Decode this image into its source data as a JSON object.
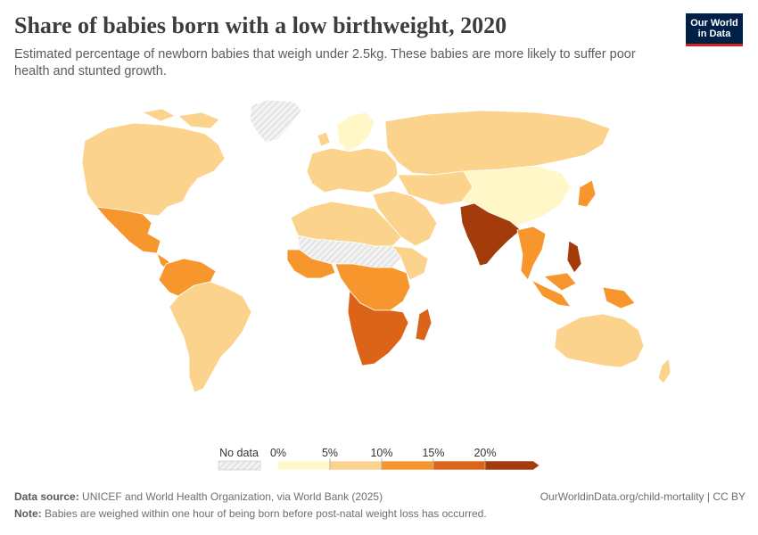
{
  "header": {
    "title": "Share of babies born with a low birthweight, 2020",
    "subtitle": "Estimated percentage of newborn babies that weigh under 2.5kg. These babies are more likely to suffer poor health and stunted growth.",
    "logo_line1": "Our World",
    "logo_line2": "in Data"
  },
  "legend": {
    "no_data_label": "No data",
    "ticks": [
      "0%",
      "5%",
      "10%",
      "15%",
      "20%"
    ],
    "tick_values": [
      0,
      5,
      10,
      15,
      20
    ],
    "bins": [
      {
        "from": 0,
        "to": 5,
        "color": "#fff7c7"
      },
      {
        "from": 5,
        "to": 10,
        "color": "#fcd38c"
      },
      {
        "from": 10,
        "to": 15,
        "color": "#f7962d"
      },
      {
        "from": 15,
        "to": 20,
        "color": "#dc6418"
      },
      {
        "from": 20,
        "to": 25,
        "color": "#a33b0b"
      }
    ],
    "no_data_color": "#e6e6e6"
  },
  "footer": {
    "source_label": "Data source:",
    "source_text": "UNICEF and World Health Organization, via World Bank (2025)",
    "url_text": "OurWorldinData.org/child-mortality | CC BY",
    "note_label": "Note:",
    "note_text": "Babies are weighed within one hour of being born before post-natal weight loss has occurred."
  },
  "map_regions": [
    {
      "name": "north-america",
      "bin": 1
    },
    {
      "name": "mexico",
      "bin": 2
    },
    {
      "name": "south-america",
      "bin": 1
    },
    {
      "name": "colombia-venezuela",
      "bin": 2
    },
    {
      "name": "greenland",
      "bin": -1
    },
    {
      "name": "europe",
      "bin": 1
    },
    {
      "name": "scandinavia",
      "bin": 0
    },
    {
      "name": "russia",
      "bin": 1
    },
    {
      "name": "china",
      "bin": 0
    },
    {
      "name": "india",
      "bin": 4
    },
    {
      "name": "southeast-asia",
      "bin": 2
    },
    {
      "name": "philippines",
      "bin": 4
    },
    {
      "name": "sahara",
      "bin": -1
    },
    {
      "name": "west-africa",
      "bin": 2
    },
    {
      "name": "central-africa",
      "bin": 2
    },
    {
      "name": "southern-africa",
      "bin": 3
    },
    {
      "name": "madagascar",
      "bin": 3
    },
    {
      "name": "australia",
      "bin": 1
    },
    {
      "name": "japan",
      "bin": 2
    }
  ]
}
